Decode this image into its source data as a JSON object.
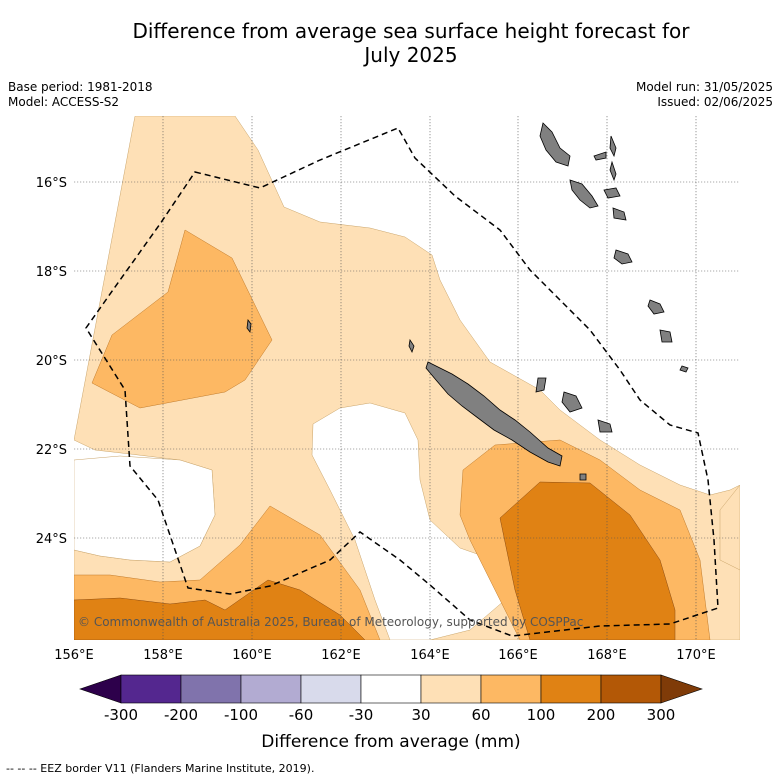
{
  "title": {
    "line1": "Difference from average sea surface height forecast for",
    "line2": "July 2025"
  },
  "meta": {
    "base_period": "Base period: 1981-2018",
    "model": "Model: ACCESS-S2",
    "model_run": "Model run: 31/05/2025",
    "issued": "Issued: 02/06/2025"
  },
  "map": {
    "lon_labels": [
      "156°E",
      "158°E",
      "160°E",
      "162°E",
      "164°E",
      "166°E",
      "168°E",
      "170°E"
    ],
    "lat_labels": [
      "16°S",
      "18°S",
      "20°S",
      "22°S",
      "24°S"
    ],
    "copyright": "© Commonwealth of Australia 2025, Bureau of Meteorology, supported by COSPPac"
  },
  "colorbar": {
    "label": "Difference from average (mm)",
    "ticks": [
      "-300",
      "-200",
      "-100",
      "-60",
      "-30",
      "30",
      "60",
      "100",
      "200",
      "300"
    ],
    "colors": [
      "#54278f",
      "#8073ac",
      "#b2abd2",
      "#d8daeb",
      "#ffffff",
      "#fee0b6",
      "#fdb863",
      "#e08214",
      "#b35806"
    ],
    "extend_low_color": "#2d004b",
    "extend_high_color": "#7f3b08"
  },
  "colors": {
    "land": "#808080",
    "band_30_60": "#fee0b6",
    "band_60_100": "#fdb863",
    "band_100_200": "#e08214"
  },
  "footer": "--  --  -- EEZ border V11 (Flanders Marine Institute, 2019)."
}
